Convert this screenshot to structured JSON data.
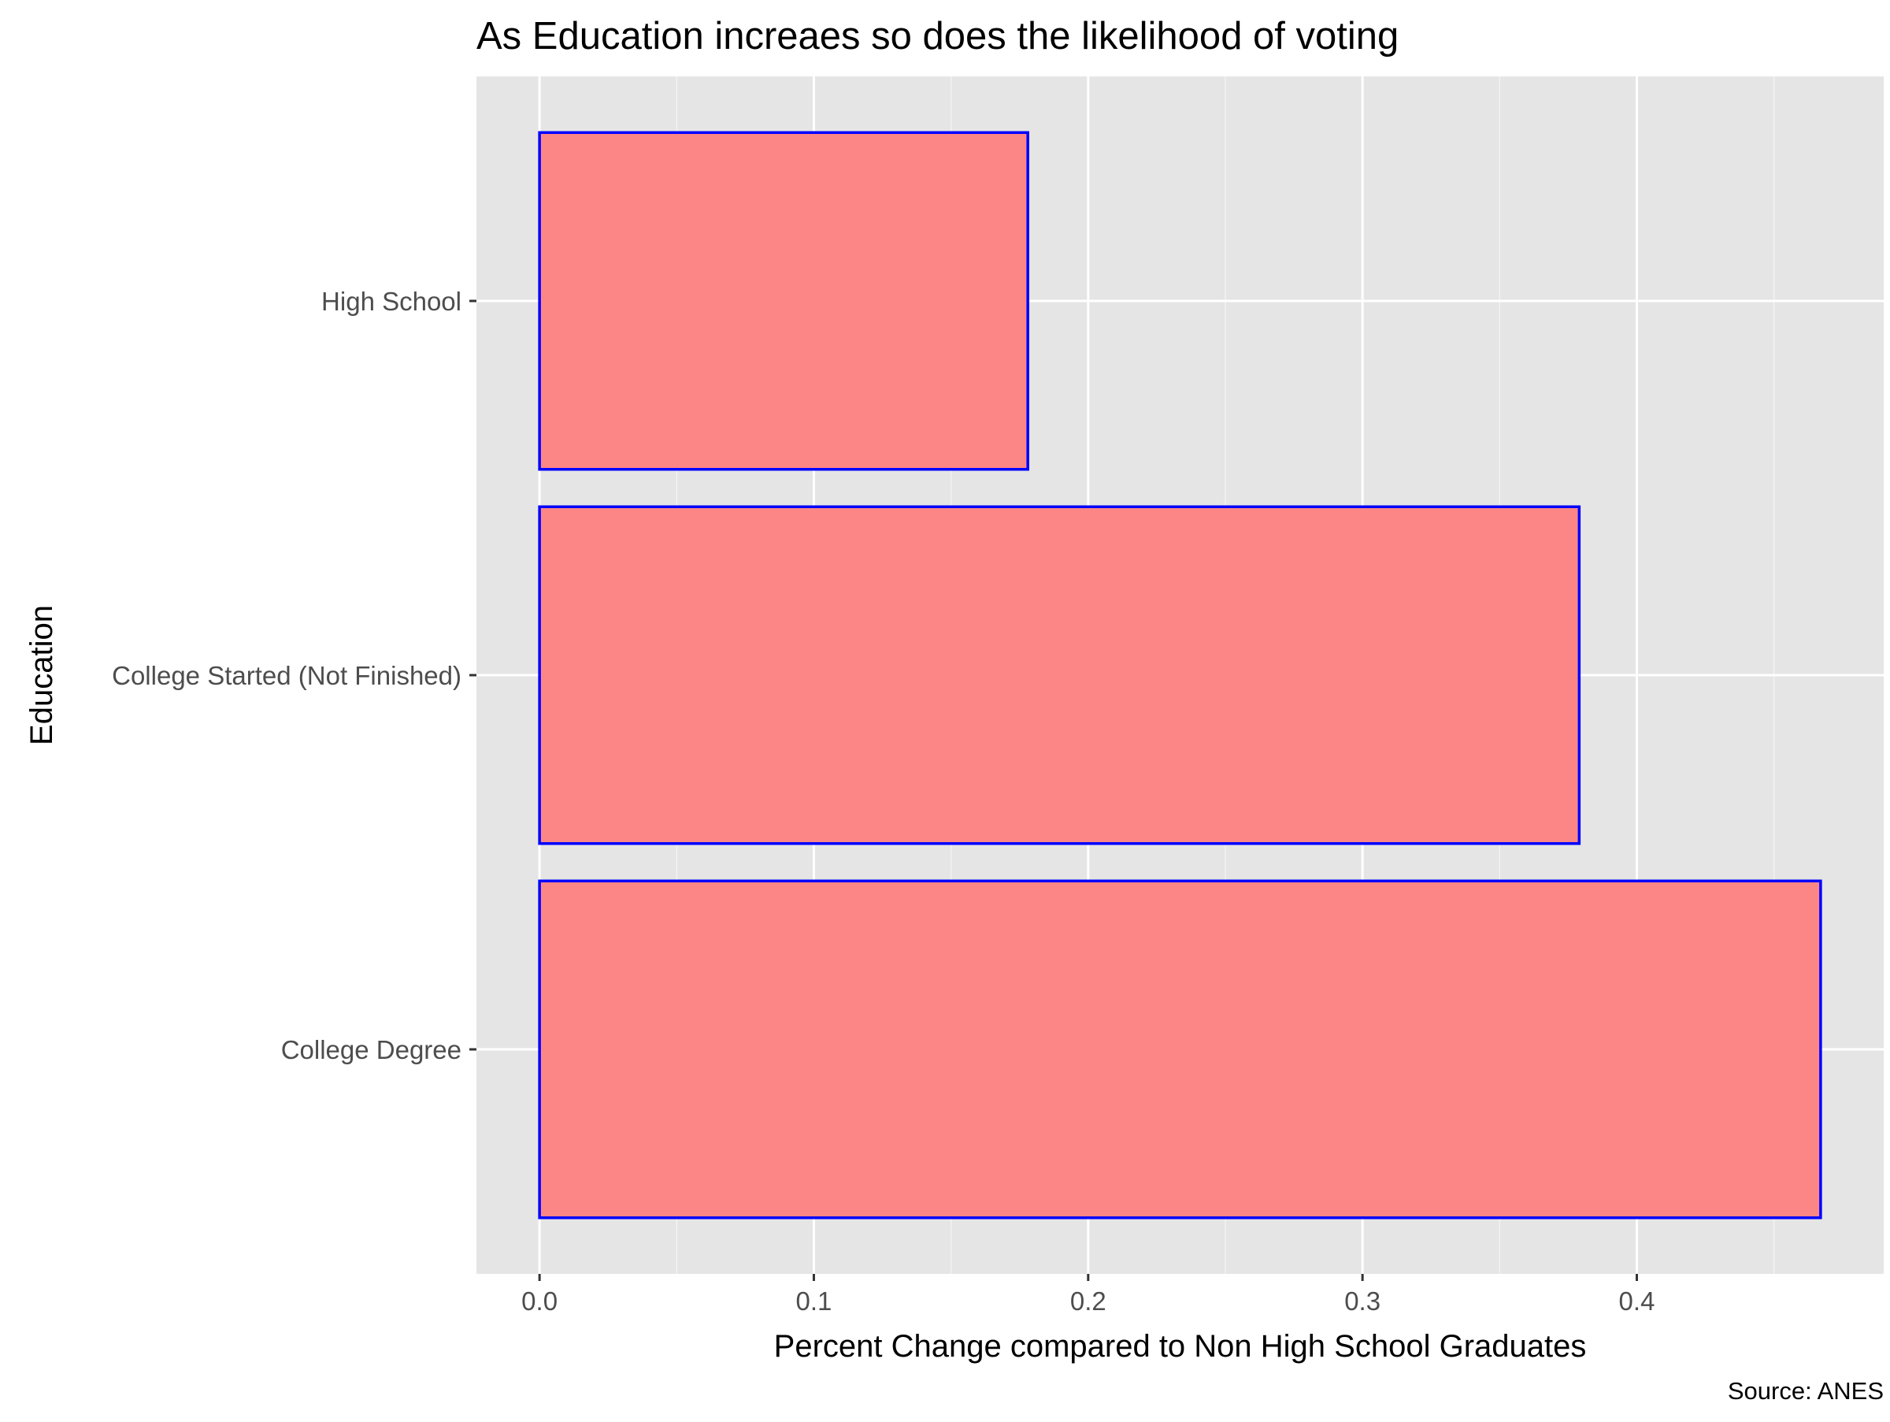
{
  "chart_data": {
    "type": "bar",
    "orientation": "horizontal",
    "title": "As Education increaes so does the likelihood of voting",
    "xlabel": "Percent Change compared to Non High School Graduates",
    "ylabel": "Education",
    "caption": "Source: ANES",
    "categories": [
      "High School",
      "College Started (Not Finished)",
      "College Degree"
    ],
    "values": [
      0.178,
      0.379,
      0.467
    ],
    "xlim": [
      -0.023,
      0.49
    ],
    "x_ticks": [
      0.0,
      0.1,
      0.2,
      0.3,
      0.4
    ],
    "x_tick_labels": [
      "0.0",
      "0.1",
      "0.2",
      "0.3",
      "0.4"
    ],
    "grid": true,
    "legend": "none",
    "colors": {
      "bar_fill": "#fc8686",
      "bar_outline": "#0000ff",
      "panel_background": "#e5e5e5",
      "grid_major": "#ffffff",
      "grid_minor": "#f2f2f2"
    }
  }
}
